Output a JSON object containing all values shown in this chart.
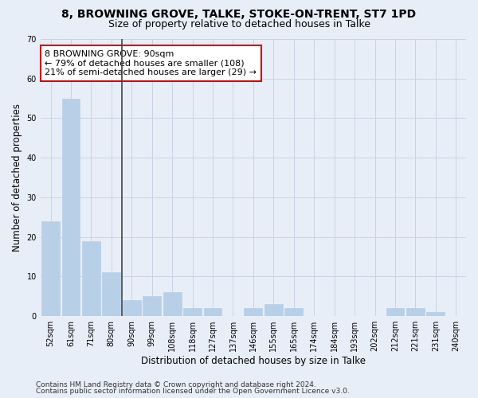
{
  "title1": "8, BROWNING GROVE, TALKE, STOKE-ON-TRENT, ST7 1PD",
  "title2": "Size of property relative to detached houses in Talke",
  "xlabel": "Distribution of detached houses by size in Talke",
  "ylabel": "Number of detached properties",
  "categories": [
    "52sqm",
    "61sqm",
    "71sqm",
    "80sqm",
    "90sqm",
    "99sqm",
    "108sqm",
    "118sqm",
    "127sqm",
    "137sqm",
    "146sqm",
    "155sqm",
    "165sqm",
    "174sqm",
    "184sqm",
    "193sqm",
    "202sqm",
    "212sqm",
    "221sqm",
    "231sqm",
    "240sqm"
  ],
  "values": [
    24,
    55,
    19,
    11,
    4,
    5,
    6,
    2,
    2,
    0,
    2,
    3,
    2,
    0,
    0,
    0,
    0,
    2,
    2,
    1,
    0
  ],
  "bar_color": "#b8cfe8",
  "bar_edge_color": "#b8cfe8",
  "vline_color": "#444444",
  "annotation_text": "8 BROWNING GROVE: 90sqm\n← 79% of detached houses are smaller (108)\n21% of semi-detached houses are larger (29) →",
  "annotation_box_color": "white",
  "annotation_box_edge_color": "#cc0000",
  "ylim": [
    0,
    70
  ],
  "yticks": [
    0,
    10,
    20,
    30,
    40,
    50,
    60,
    70
  ],
  "grid_color": "#c8d4e4",
  "background_color": "#e8eef8",
  "footer1": "Contains HM Land Registry data © Crown copyright and database right 2024.",
  "footer2": "Contains public sector information licensed under the Open Government Licence v3.0.",
  "title1_fontsize": 10,
  "title2_fontsize": 9,
  "axis_label_fontsize": 8.5,
  "tick_fontsize": 7,
  "annotation_fontsize": 8,
  "footer_fontsize": 6.5
}
